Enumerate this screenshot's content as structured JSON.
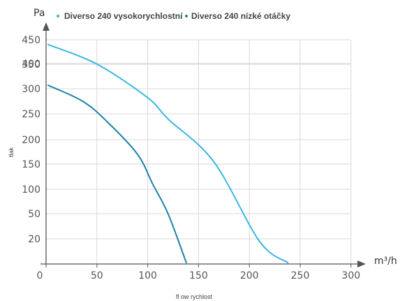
{
  "chart_data": {
    "type": "line",
    "y_unit": "Pa",
    "x_unit": "m³/h",
    "ylabel": "tlak",
    "xlabel": "fl ow rychlost",
    "x_ticks": [
      0,
      50,
      100,
      150,
      200,
      250,
      300
    ],
    "y_ticks": [
      20,
      50,
      100,
      150,
      200,
      250,
      300,
      350,
      400,
      450
    ],
    "grid": true,
    "legend_position": "top",
    "series": [
      {
        "name": "Diverso 240 vysokorychlostní",
        "color": "#3bb6e3",
        "points": [
          [
            2,
            440
          ],
          [
            50,
            365
          ],
          [
            100,
            282
          ],
          [
            120,
            240
          ],
          [
            165,
            155
          ],
          [
            210,
            18
          ],
          [
            238,
            1
          ]
        ]
      },
      {
        "name": "Diverso 240 nízké otáčky",
        "color": "#1d83a6",
        "points": [
          [
            2,
            307
          ],
          [
            36,
            275
          ],
          [
            60,
            235
          ],
          [
            90,
            170
          ],
          [
            105,
            110
          ],
          [
            120,
            50
          ],
          [
            138,
            1
          ]
        ]
      }
    ]
  }
}
